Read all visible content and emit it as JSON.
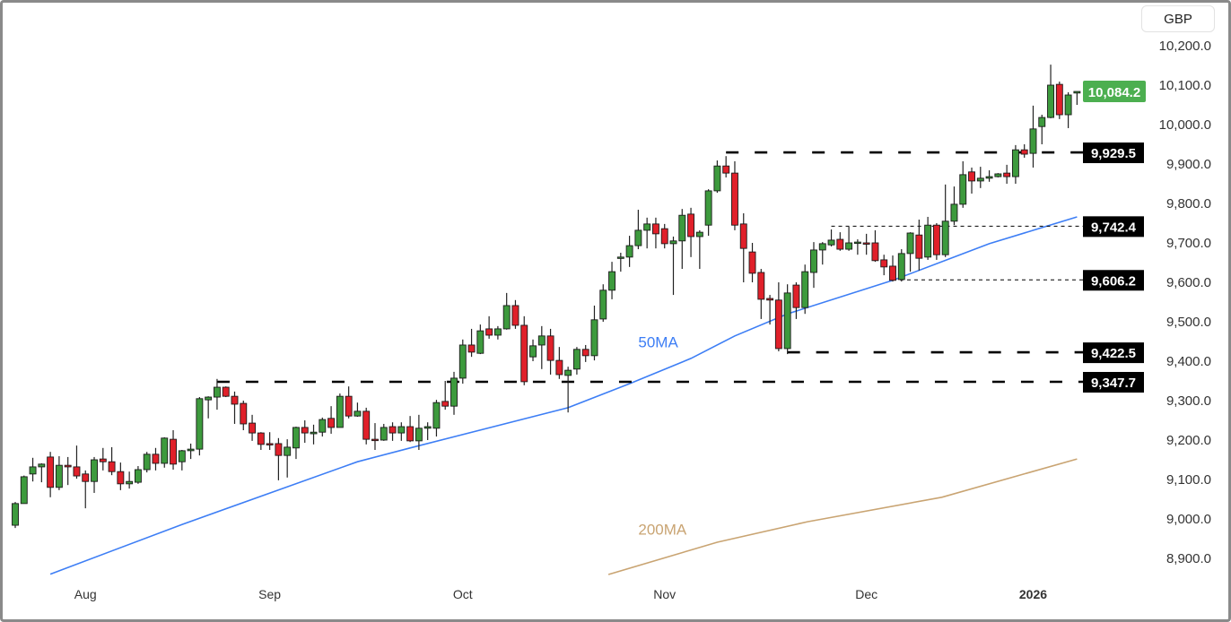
{
  "currency_button": "GBP",
  "chart_data": {
    "type": "candlestick",
    "y_ticks": [
      "8,900.0",
      "9,000.0",
      "9,100.0",
      "9,200.0",
      "9,300.0",
      "9,400.0",
      "9,500.0",
      "9,600.0",
      "9,700.0",
      "9,800.0",
      "9,900.0",
      "10,000.0",
      "10,100.0",
      "10,200.0"
    ],
    "y_tick_values": [
      8900,
      9000,
      9100,
      9200,
      9300,
      9400,
      9500,
      9600,
      9700,
      9800,
      9900,
      10000,
      10100,
      10200
    ],
    "ylim": [
      8850,
      10250
    ],
    "x_labels": [
      {
        "label": "Aug",
        "index": 8
      },
      {
        "label": "Sep",
        "index": 29
      },
      {
        "label": "Oct",
        "index": 51
      },
      {
        "label": "Nov",
        "index": 74
      },
      {
        "label": "Dec",
        "index": 97
      },
      {
        "label": "2026",
        "index": 116
      }
    ],
    "last_price": {
      "label": "10,084.2",
      "value": 10084.2,
      "color": "#4caf50"
    },
    "levels": [
      {
        "label": "9,929.5",
        "value": 9929.5,
        "start_index": 81,
        "style": "thick"
      },
      {
        "label": "9,742.4",
        "value": 9742.4,
        "start_index": 93,
        "style": "thin"
      },
      {
        "label": "9,606.2",
        "value": 9606.2,
        "start_index": 100,
        "style": "thin"
      },
      {
        "label": "9,422.5",
        "value": 9422.5,
        "start_index": 88,
        "style": "thick"
      },
      {
        "label": "9,347.7",
        "value": 9347.7,
        "start_index": 23,
        "style": "thick"
      }
    ],
    "ma": [
      {
        "name": "50MA",
        "color": "#3d7ef5",
        "label_index": 71,
        "label_value": 9435,
        "points": [
          [
            4,
            8860
          ],
          [
            19,
            8986
          ],
          [
            39,
            9145
          ],
          [
            45,
            9180
          ],
          [
            63,
            9282
          ],
          [
            70,
            9343
          ],
          [
            77,
            9407
          ],
          [
            82,
            9464
          ],
          [
            88,
            9520
          ],
          [
            100,
            9605
          ],
          [
            107,
            9664
          ],
          [
            111,
            9698
          ],
          [
            121,
            9766
          ]
        ]
      },
      {
        "name": "200MA",
        "color": "#c9a472",
        "label_index": 71,
        "label_value": 8960,
        "points": [
          [
            67.6,
            8859
          ],
          [
            80,
            8941
          ],
          [
            90.3,
            8993
          ],
          [
            105.6,
            9055
          ],
          [
            121,
            9152
          ]
        ]
      }
    ],
    "up_color": "#3d9a3d",
    "down_color": "#e0202a",
    "ohlc": [
      [
        8984,
        9043,
        8977,
        9039
      ],
      [
        9039,
        9110,
        9039,
        9107
      ],
      [
        9114,
        9155,
        9095,
        9132
      ],
      [
        9132,
        9141,
        9093,
        9139
      ],
      [
        9157,
        9170,
        9055,
        9080
      ],
      [
        9080,
        9159,
        9073,
        9136
      ],
      [
        9136,
        9157,
        9086,
        9132
      ],
      [
        9132,
        9186,
        9102,
        9109
      ],
      [
        9114,
        9123,
        9027,
        9095
      ],
      [
        9095,
        9157,
        9066,
        9150
      ],
      [
        9152,
        9180,
        9123,
        9145
      ],
      [
        9145,
        9182,
        9111,
        9120
      ],
      [
        9120,
        9143,
        9073,
        9089
      ],
      [
        9089,
        9120,
        9077,
        9095
      ],
      [
        9093,
        9134,
        9089,
        9125
      ],
      [
        9125,
        9170,
        9118,
        9164
      ],
      [
        9164,
        9180,
        9123,
        9141
      ],
      [
        9141,
        9207,
        9130,
        9205
      ],
      [
        9202,
        9225,
        9125,
        9139
      ],
      [
        9145,
        9175,
        9123,
        9173
      ],
      [
        9173,
        9191,
        9152,
        9177
      ],
      [
        9177,
        9309,
        9161,
        9305
      ],
      [
        9302,
        9311,
        9255,
        9309
      ],
      [
        9309,
        9355,
        9277,
        9334
      ],
      [
        9334,
        9336,
        9309,
        9311
      ],
      [
        9311,
        9323,
        9241,
        9291
      ],
      [
        9293,
        9300,
        9225,
        9241
      ],
      [
        9243,
        9264,
        9198,
        9218
      ],
      [
        9218,
        9220,
        9175,
        9189
      ],
      [
        9191,
        9220,
        9175,
        9189
      ],
      [
        9191,
        9205,
        9098,
        9161
      ],
      [
        9161,
        9202,
        9105,
        9182
      ],
      [
        9180,
        9234,
        9152,
        9232
      ],
      [
        9232,
        9250,
        9193,
        9218
      ],
      [
        9216,
        9239,
        9189,
        9220
      ],
      [
        9220,
        9257,
        9209,
        9252
      ],
      [
        9255,
        9286,
        9216,
        9232
      ],
      [
        9232,
        9318,
        9232,
        9311
      ],
      [
        9311,
        9336,
        9255,
        9261
      ],
      [
        9261,
        9295,
        9259,
        9273
      ],
      [
        9273,
        9282,
        9189,
        9202
      ],
      [
        9202,
        9243,
        9175,
        9200
      ],
      [
        9200,
        9241,
        9198,
        9232
      ],
      [
        9234,
        9245,
        9198,
        9218
      ],
      [
        9218,
        9245,
        9198,
        9234
      ],
      [
        9234,
        9261,
        9195,
        9198
      ],
      [
        9198,
        9264,
        9175,
        9230
      ],
      [
        9230,
        9245,
        9200,
        9234
      ],
      [
        9230,
        9302,
        9209,
        9295
      ],
      [
        9298,
        9350,
        9277,
        9286
      ],
      [
        9286,
        9373,
        9264,
        9357
      ],
      [
        9357,
        9455,
        9343,
        9441
      ],
      [
        9441,
        9482,
        9411,
        9423
      ],
      [
        9420,
        9493,
        9418,
        9477
      ],
      [
        9482,
        9514,
        9457,
        9466
      ],
      [
        9466,
        9489,
        9455,
        9482
      ],
      [
        9482,
        9573,
        9480,
        9541
      ],
      [
        9541,
        9555,
        9482,
        9491
      ],
      [
        9491,
        9514,
        9339,
        9348
      ],
      [
        9411,
        9455,
        9400,
        9439
      ],
      [
        9441,
        9489,
        9380,
        9464
      ],
      [
        9464,
        9482,
        9366,
        9402
      ],
      [
        9402,
        9436,
        9355,
        9366
      ],
      [
        9364,
        9386,
        9270,
        9377
      ],
      [
        9380,
        9436,
        9366,
        9430
      ],
      [
        9430,
        9441,
        9398,
        9414
      ],
      [
        9414,
        9541,
        9402,
        9505
      ],
      [
        9507,
        9595,
        9500,
        9580
      ],
      [
        9580,
        9652,
        9557,
        9627
      ],
      [
        9661,
        9675,
        9627,
        9664
      ],
      [
        9664,
        9718,
        9639,
        9693
      ],
      [
        9693,
        9784,
        9684,
        9732
      ],
      [
        9732,
        9764,
        9686,
        9748
      ],
      [
        9748,
        9764,
        9686,
        9723
      ],
      [
        9736,
        9748,
        9686,
        9698
      ],
      [
        9698,
        9716,
        9568,
        9705
      ],
      [
        9705,
        9786,
        9634,
        9770
      ],
      [
        9773,
        9789,
        9664,
        9716
      ],
      [
        9716,
        9732,
        9634,
        9727
      ],
      [
        9745,
        9836,
        9718,
        9832
      ],
      [
        9832,
        9909,
        9827,
        9895
      ],
      [
        9895,
        9920,
        9866,
        9877
      ],
      [
        9877,
        9907,
        9732,
        9745
      ],
      [
        9748,
        9775,
        9600,
        9686
      ],
      [
        9677,
        9700,
        9600,
        9623
      ],
      [
        9625,
        9634,
        9507,
        9557
      ],
      [
        9559,
        9568,
        9493,
        9555
      ],
      [
        9555,
        9600,
        9425,
        9432
      ],
      [
        9432,
        9595,
        9418,
        9573
      ],
      [
        9593,
        9600,
        9507,
        9536
      ],
      [
        9536,
        9645,
        9520,
        9627
      ],
      [
        9625,
        9702,
        9586,
        9682
      ],
      [
        9682,
        9702,
        9645,
        9698
      ],
      [
        9695,
        9734,
        9691,
        9707
      ],
      [
        9709,
        9727,
        9680,
        9684
      ],
      [
        9684,
        9741,
        9680,
        9700
      ],
      [
        9700,
        9709,
        9670,
        9702
      ],
      [
        9700,
        9723,
        9670,
        9698
      ],
      [
        9700,
        9732,
        9652,
        9655
      ],
      [
        9657,
        9670,
        9618,
        9639
      ],
      [
        9641,
        9668,
        9602,
        9605
      ],
      [
        9607,
        9684,
        9602,
        9673
      ],
      [
        9673,
        9727,
        9627,
        9725
      ],
      [
        9720,
        9759,
        9630,
        9661
      ],
      [
        9664,
        9766,
        9657,
        9745
      ],
      [
        9745,
        9750,
        9657,
        9670
      ],
      [
        9670,
        9848,
        9664,
        9755
      ],
      [
        9755,
        9843,
        9745,
        9798
      ],
      [
        9798,
        9907,
        9789,
        9873
      ],
      [
        9880,
        9891,
        9825,
        9857
      ],
      [
        9857,
        9893,
        9839,
        9864
      ],
      [
        9864,
        9884,
        9855,
        9868
      ],
      [
        9868,
        9877,
        9866,
        9875
      ],
      [
        9877,
        9898,
        9850,
        9868
      ],
      [
        9868,
        9948,
        9850,
        9936
      ],
      [
        9936,
        9950,
        9916,
        9925
      ],
      [
        9927,
        10048,
        9891,
        9989
      ],
      [
        9995,
        10025,
        9950,
        10018
      ],
      [
        10018,
        10152,
        10016,
        10100
      ],
      [
        10102,
        10109,
        10014,
        10025
      ],
      [
        10025,
        10082,
        9991,
        10075
      ],
      [
        10080,
        10084,
        10050,
        10084
      ]
    ]
  }
}
